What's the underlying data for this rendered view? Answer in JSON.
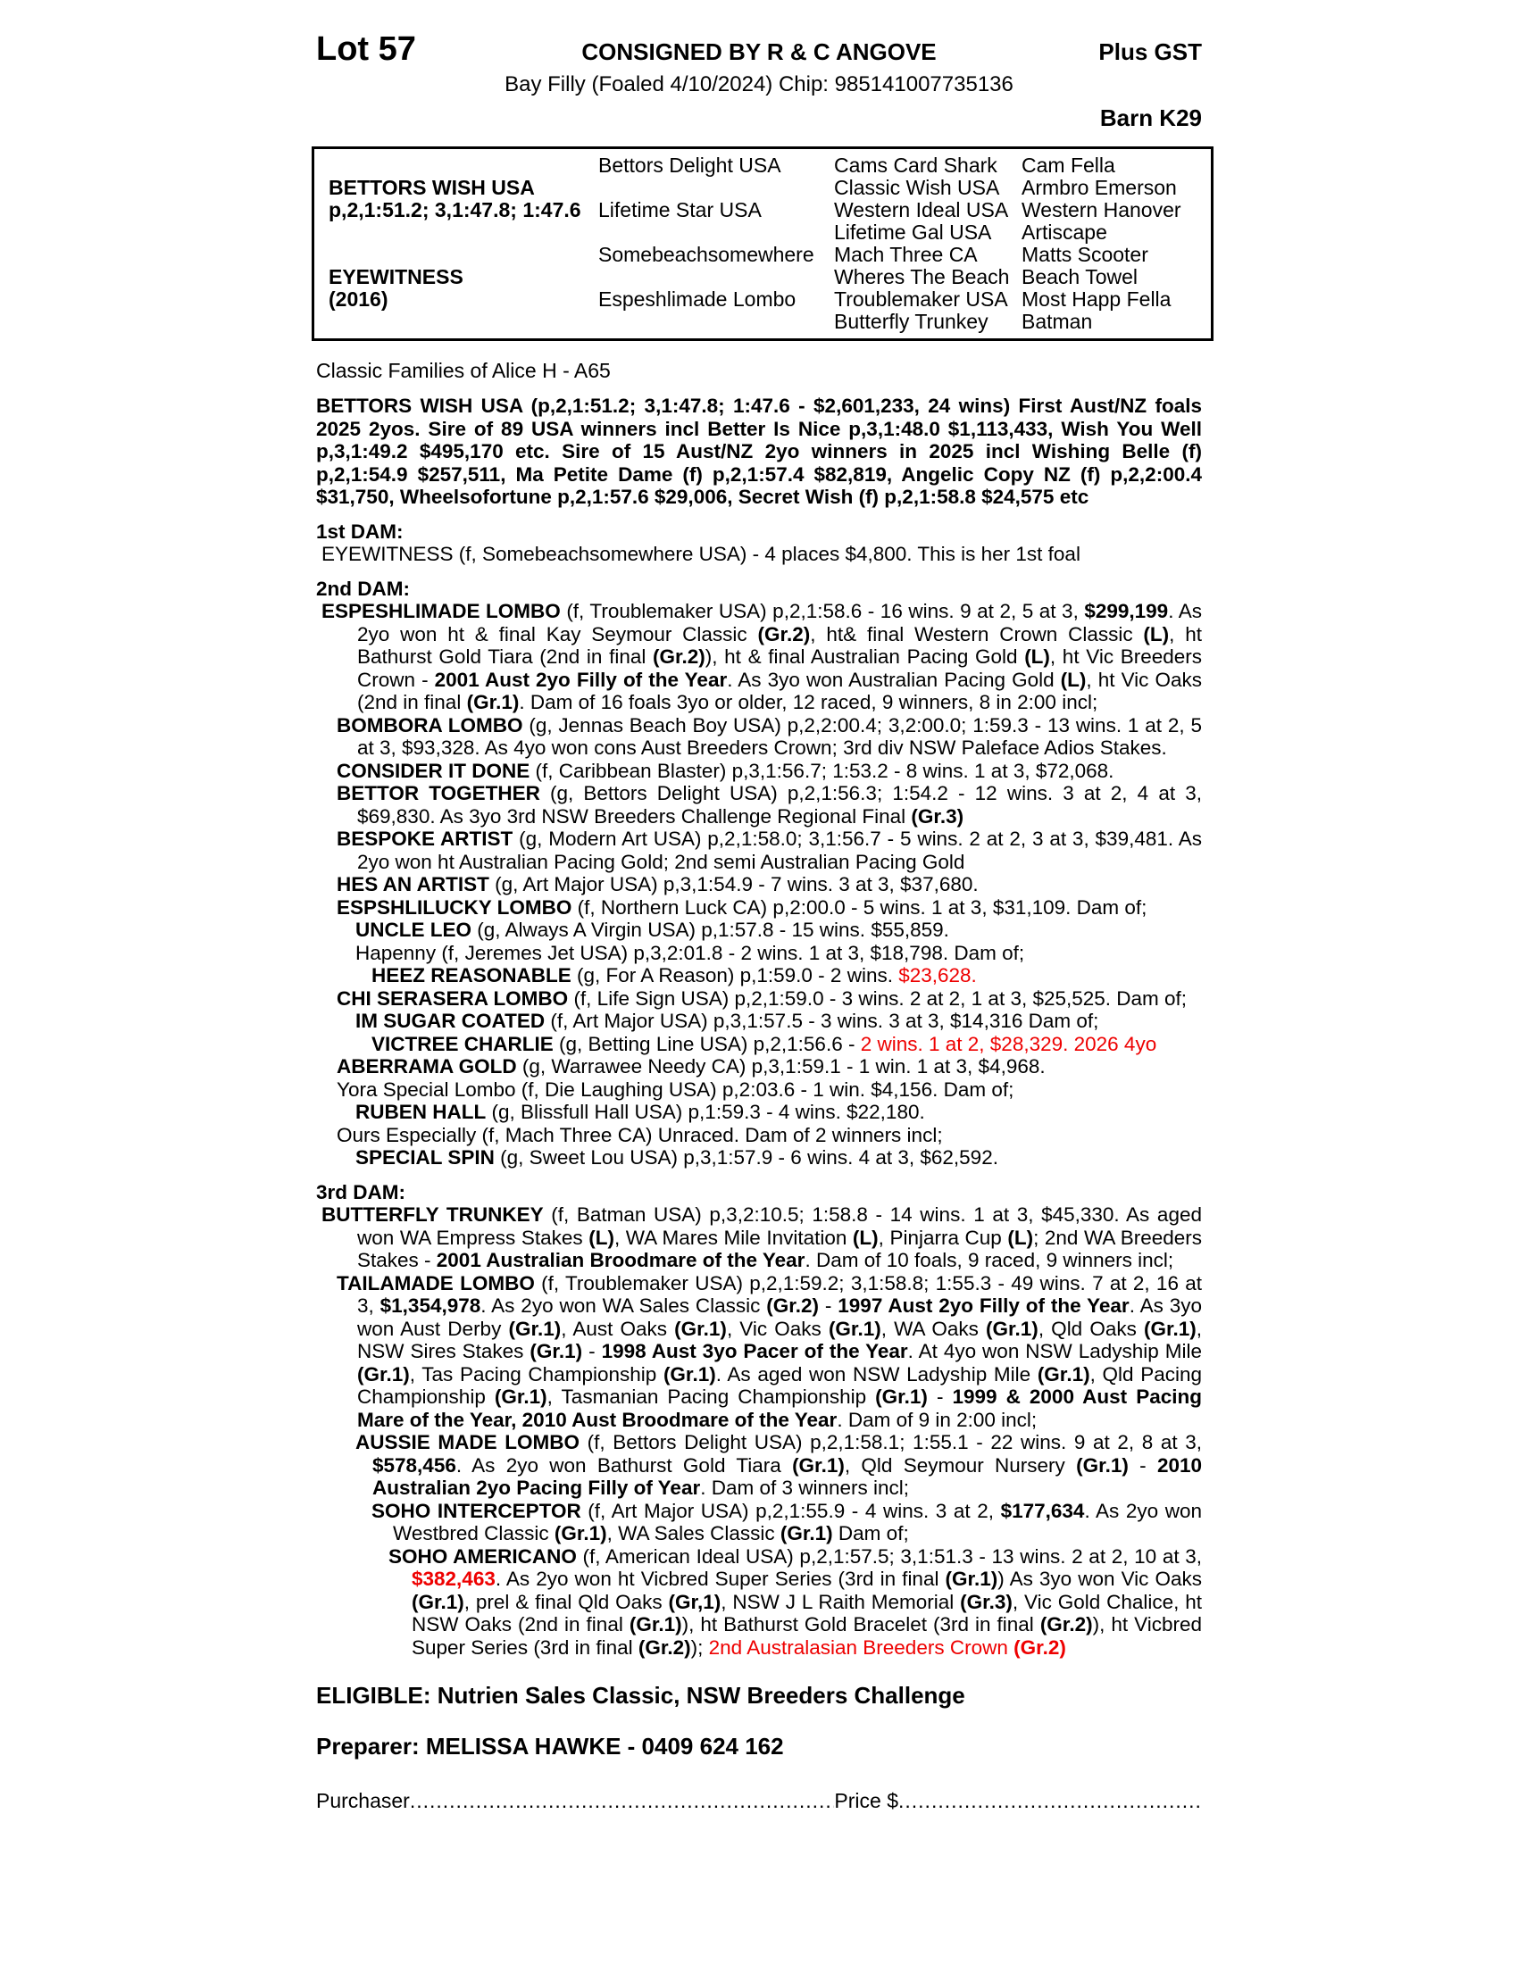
{
  "colors": {
    "accent_red": "#ee0000"
  },
  "header": {
    "lot": "Lot 57",
    "consigned": "CONSIGNED BY R & C ANGOVE",
    "plus_gst": "Plus GST",
    "foal_line": "Bay Filly (Foaled 4/10/2024) Chip: 985141007735136",
    "barn": "Barn K29"
  },
  "pedigree_table": {
    "rows": [
      [
        "",
        "Bettors Delight USA",
        "Cams Card Shark",
        "Cam Fella"
      ],
      [
        "BETTORS WISH USA",
        "",
        "Classic Wish USA",
        "Armbro Emerson"
      ],
      [
        "p,2,1:51.2; 3,1:47.8; 1:47.6",
        "Lifetime Star USA",
        "Western Ideal USA",
        "Western Hanover"
      ],
      [
        "",
        "",
        "Lifetime Gal USA",
        "Artiscape"
      ],
      [
        "",
        "Somebeachsomewhere",
        "Mach Three CA",
        "Matts Scooter"
      ],
      [
        "EYEWITNESS",
        "",
        "Wheres The Beach",
        "Beach Towel"
      ],
      [
        "(2016)",
        "Espeshlimade Lombo",
        "Troublemaker USA",
        "Most Happ Fella"
      ],
      [
        "",
        "",
        "Butterfly Trunkey",
        "Batman"
      ]
    ]
  },
  "family_line": "Classic Families of Alice H - A65",
  "paragraphs": [
    {
      "name": "sire-summary",
      "d": "sire",
      "gap": true,
      "seg": [
        {
          "t": "BETTORS WISH USA (p,2,1:51.2; 3,1:47.8; 1:47.6 - $2,601,233, 24 wins) First Aust/NZ foals 2025 2yos. Sire of 89 USA winners incl Better Is Nice p,3,1:48.0 $1,113,433, Wish You Well p,3,1:49.2 $495,170 etc. Sire of 15 Aust/NZ 2yo winners in 2025 incl Wishing Belle (f) p,2,1:54.9 $257,511, Ma Petite Dame (f) p,2,1:57.4 $82,819, Angelic Copy NZ (f) p,2,2:00.4 $31,750, Wheelsofortune p,2,1:57.6 $29,006, Secret Wish (f) p,2,1:58.8 $24,575 etc",
          "s": "b"
        }
      ]
    },
    {
      "name": "dam1-header",
      "d": "dam",
      "gap": true,
      "seg": [
        {
          "t": "1st DAM:",
          "s": "b"
        }
      ]
    },
    {
      "name": "entry-eyewitness",
      "d": 0,
      "seg": [
        {
          "t": "EYEWITNESS (f, Somebeachsomewhere USA) - 4 places $4,800. This is her 1st foal"
        }
      ]
    },
    {
      "name": "dam2-header",
      "d": "dam",
      "gap": true,
      "seg": [
        {
          "t": "2nd DAM:",
          "s": "b"
        }
      ]
    },
    {
      "name": "entry-espeshlimade-lombo",
      "d": 0,
      "seg": [
        {
          "t": "ESPESHLIMADE LOMBO",
          "s": "b"
        },
        {
          "t": " (f, Troublemaker USA) p,2,1:58.6 - 16 wins. 9 at 2, 5 at 3, "
        },
        {
          "t": "$299,199",
          "s": "b"
        },
        {
          "t": ". As 2yo won ht & final Kay Seymour Classic "
        },
        {
          "t": "(Gr.2)",
          "s": "b"
        },
        {
          "t": ", ht& final Western Crown Classic "
        },
        {
          "t": "(L)",
          "s": "b"
        },
        {
          "t": ", ht Bathurst Gold Tiara (2nd in final "
        },
        {
          "t": "(Gr.2)",
          "s": "b"
        },
        {
          "t": "), ht & final Australian Pacing Gold "
        },
        {
          "t": "(L)",
          "s": "b"
        },
        {
          "t": ", ht Vic Breeders Crown - "
        },
        {
          "t": "2001 Aust 2yo Filly of the Year",
          "s": "b"
        },
        {
          "t": ". As 3yo won Australian Pacing Gold "
        },
        {
          "t": "(L)",
          "s": "b"
        },
        {
          "t": ", ht Vic Oaks (2nd in final "
        },
        {
          "t": "(Gr.1)",
          "s": "b"
        },
        {
          "t": ". Dam of 16 foals 3yo or older, 12 raced, 9 winners, 8 in 2:00 incl;"
        }
      ]
    },
    {
      "name": "entry-bombora-lombo",
      "d": 1,
      "seg": [
        {
          "t": "BOMBORA LOMBO",
          "s": "b"
        },
        {
          "t": " (g, Jennas Beach Boy USA) p,2,2:00.4; 3,2:00.0; 1:59.3 - 13 wins. 1 at 2, 5 at 3, $93,328. As 4yo won cons Aust Breeders Crown; 3rd div NSW Paleface Adios Stakes."
        }
      ]
    },
    {
      "name": "entry-consider-it-done",
      "d": 1,
      "seg": [
        {
          "t": "CONSIDER IT DONE",
          "s": "b"
        },
        {
          "t": " (f, Caribbean Blaster) p,3,1:56.7; 1:53.2 - 8 wins. 1 at 3, $72,068."
        }
      ]
    },
    {
      "name": "entry-bettor-together",
      "d": 1,
      "seg": [
        {
          "t": "BETTOR TOGETHER",
          "s": "b"
        },
        {
          "t": " (g, Bettors Delight USA) p,2,1:56.3; 1:54.2 - 12 wins. 3 at 2, 4 at 3, $69,830. As 3yo 3rd NSW Breeders Challenge Regional Final "
        },
        {
          "t": "(Gr.3)",
          "s": "b"
        }
      ]
    },
    {
      "name": "entry-bespoke-artist",
      "d": 1,
      "seg": [
        {
          "t": "BESPOKE ARTIST",
          "s": "b"
        },
        {
          "t": " (g, Modern Art USA) p,2,1:58.0; 3,1:56.7 - 5 wins. 2 at 2, 3 at 3, $39,481. As 2yo won ht Australian Pacing Gold; 2nd semi Australian Pacing Gold"
        }
      ]
    },
    {
      "name": "entry-hes-an-artist",
      "d": 1,
      "seg": [
        {
          "t": "HES AN ARTIST",
          "s": "b"
        },
        {
          "t": " (g, Art Major USA) p,3,1:54.9 - 7 wins. 3 at 3, $37,680."
        }
      ]
    },
    {
      "name": "entry-espshlilucky-lombo",
      "d": 1,
      "seg": [
        {
          "t": "ESPSHLILUCKY LOMBO",
          "s": "b"
        },
        {
          "t": " (f, Northern Luck CA) p,2:00.0 - 5 wins. 1 at 3, $31,109. Dam of;"
        }
      ]
    },
    {
      "name": "entry-uncle-leo",
      "d": 2,
      "seg": [
        {
          "t": "UNCLE LEO",
          "s": "b"
        },
        {
          "t": " (g, Always A Virgin USA) p,1:57.8 - 15 wins. $55,859."
        }
      ]
    },
    {
      "name": "entry-hapenny",
      "d": 2,
      "seg": [
        {
          "t": "Hapenny (f, Jeremes Jet USA) p,3,2:01.8 - 2 wins. 1 at 3, $18,798. Dam of;"
        }
      ]
    },
    {
      "name": "entry-heez-reasonable",
      "d": 3,
      "seg": [
        {
          "t": "HEEZ REASONABLE",
          "s": "b"
        },
        {
          "t": " (g, For A Reason) p,1:59.0 - 2 wins. "
        },
        {
          "t": "$23,628.",
          "s": "r"
        }
      ]
    },
    {
      "name": "entry-chi-serasera-lombo",
      "d": 1,
      "seg": [
        {
          "t": "CHI SERASERA LOMBO",
          "s": "b"
        },
        {
          "t": " (f, Life Sign USA) p,2,1:59.0 - 3 wins. 2 at 2, 1 at 3, $25,525. Dam of;"
        }
      ]
    },
    {
      "name": "entry-im-sugar-coated",
      "d": 2,
      "seg": [
        {
          "t": "IM SUGAR COATED",
          "s": "b"
        },
        {
          "t": " (f, Art Major USA) p,3,1:57.5 - 3 wins. 3 at 3, $14,316 Dam of;"
        }
      ]
    },
    {
      "name": "entry-victree-charlie",
      "d": 3,
      "seg": [
        {
          "t": "VICTREE CHARLIE",
          "s": "b"
        },
        {
          "t": " (g, Betting Line USA) p,2,1:56.6 - "
        },
        {
          "t": "2 wins. 1 at 2, $28,329. 2026 4yo",
          "s": "r"
        }
      ]
    },
    {
      "name": "entry-aberrama-gold",
      "d": 1,
      "seg": [
        {
          "t": "ABERRAMA GOLD",
          "s": "b"
        },
        {
          "t": " (g, Warrawee Needy CA) p,3,1:59.1 - 1 win. 1 at 3, $4,968."
        }
      ]
    },
    {
      "name": "entry-yora-special-lombo",
      "d": 1,
      "seg": [
        {
          "t": "Yora Special Lombo (f, Die Laughing USA) p,2:03.6 - 1 win. $4,156. Dam of;"
        }
      ]
    },
    {
      "name": "entry-ruben-hall",
      "d": 2,
      "seg": [
        {
          "t": "RUBEN HALL",
          "s": "b"
        },
        {
          "t": " (g, Blissfull Hall USA) p,1:59.3 - 4 wins. $22,180."
        }
      ]
    },
    {
      "name": "entry-ours-especially",
      "d": 1,
      "seg": [
        {
          "t": "Ours Especially (f, Mach Three CA) Unraced. Dam of 2 winners incl;"
        }
      ]
    },
    {
      "name": "entry-special-spin",
      "d": 2,
      "seg": [
        {
          "t": "SPECIAL SPIN",
          "s": "b"
        },
        {
          "t": " (g, Sweet Lou USA) p,3,1:57.9 - 6 wins. 4 at 3, $62,592."
        }
      ]
    },
    {
      "name": "dam3-header",
      "d": "dam",
      "gap": true,
      "seg": [
        {
          "t": "3rd DAM:",
          "s": "b"
        }
      ]
    },
    {
      "name": "entry-butterfly-trunkey",
      "d": 0,
      "seg": [
        {
          "t": "BUTTERFLY TRUNKEY",
          "s": "b"
        },
        {
          "t": " (f, Batman USA) p,3,2:10.5; 1:58.8 - 14 wins. 1 at 3, $45,330. As aged won WA Empress Stakes "
        },
        {
          "t": "(L)",
          "s": "b"
        },
        {
          "t": ", WA Mares Mile Invitation "
        },
        {
          "t": "(L)",
          "s": "b"
        },
        {
          "t": ", Pinjarra Cup "
        },
        {
          "t": "(L)",
          "s": "b"
        },
        {
          "t": "; 2nd WA Breeders Stakes - "
        },
        {
          "t": "2001 Australian Broodmare of the Year",
          "s": "b"
        },
        {
          "t": ". Dam of 10 foals, 9 raced, 9 winners incl;"
        }
      ]
    },
    {
      "name": "entry-tailamade-lombo",
      "d": 1,
      "seg": [
        {
          "t": "TAILAMADE LOMBO",
          "s": "b"
        },
        {
          "t": " (f, Troublemaker USA) p,2,1:59.2; 3,1:58.8; 1:55.3 - 49 wins. 7 at 2, 16 at 3, "
        },
        {
          "t": "$1,354,978",
          "s": "b"
        },
        {
          "t": ". As 2yo won WA Sales Classic "
        },
        {
          "t": "(Gr.2)",
          "s": "b"
        },
        {
          "t": " - "
        },
        {
          "t": "1997 Aust 2yo Filly of the Year",
          "s": "b"
        },
        {
          "t": ". As 3yo won Aust Derby "
        },
        {
          "t": "(Gr.1)",
          "s": "b"
        },
        {
          "t": ", Aust Oaks "
        },
        {
          "t": "(Gr.1)",
          "s": "b"
        },
        {
          "t": ", Vic Oaks "
        },
        {
          "t": "(Gr.1)",
          "s": "b"
        },
        {
          "t": ", WA Oaks "
        },
        {
          "t": "(Gr.1)",
          "s": "b"
        },
        {
          "t": ", Qld Oaks "
        },
        {
          "t": "(Gr.1)",
          "s": "b"
        },
        {
          "t": ", NSW Sires Stakes "
        },
        {
          "t": "(Gr.1)",
          "s": "b"
        },
        {
          "t": " - "
        },
        {
          "t": "1998 Aust 3yo Pacer of the Year",
          "s": "b"
        },
        {
          "t": ". At 4yo won NSW Ladyship Mile "
        },
        {
          "t": "(Gr.1)",
          "s": "b"
        },
        {
          "t": ", Tas Pacing Championship "
        },
        {
          "t": "(Gr.1)",
          "s": "b"
        },
        {
          "t": ". As aged won NSW Ladyship Mile "
        },
        {
          "t": "(Gr.1)",
          "s": "b"
        },
        {
          "t": ", Qld Pacing Championship "
        },
        {
          "t": "(Gr.1)",
          "s": "b"
        },
        {
          "t": ", Tasmanian Pacing Championship "
        },
        {
          "t": "(Gr.1)",
          "s": "b"
        },
        {
          "t": " - "
        },
        {
          "t": "1999 & 2000 Aust Pacing Mare of the Year, 2010 Aust Broodmare of the Year",
          "s": "b"
        },
        {
          "t": ". Dam of 9 in 2:00 incl;"
        }
      ]
    },
    {
      "name": "entry-aussie-made-lombo",
      "d": 2,
      "seg": [
        {
          "t": "AUSSIE MADE LOMBO",
          "s": "b"
        },
        {
          "t": " (f, Bettors Delight USA) p,2,1:58.1; 1:55.1 - 22 wins. 9 at 2, 8 at 3, "
        },
        {
          "t": "$578,456",
          "s": "b"
        },
        {
          "t": ". As 2yo won Bathurst Gold Tiara "
        },
        {
          "t": "(Gr.1)",
          "s": "b"
        },
        {
          "t": ", Qld Seymour Nursery "
        },
        {
          "t": "(Gr.1)",
          "s": "b"
        },
        {
          "t": " - "
        },
        {
          "t": "2010 Australian 2yo Pacing Filly of Year",
          "s": "b"
        },
        {
          "t": ". Dam of 3 winners incl;"
        }
      ]
    },
    {
      "name": "entry-soho-interceptor",
      "d": 3,
      "seg": [
        {
          "t": "SOHO INTERCEPTOR",
          "s": "b"
        },
        {
          "t": " (f, Art Major USA) p,2,1:55.9 - 4 wins. 3 at 2, "
        },
        {
          "t": "$177,634",
          "s": "b"
        },
        {
          "t": ". As 2yo won Westbred Classic "
        },
        {
          "t": "(Gr.1)",
          "s": "b"
        },
        {
          "t": ", WA Sales Classic "
        },
        {
          "t": "(Gr.1)",
          "s": "b"
        },
        {
          "t": " Dam of;"
        }
      ]
    },
    {
      "name": "entry-soho-americano",
      "d": 4,
      "seg": [
        {
          "t": "SOHO AMERICANO",
          "s": "b"
        },
        {
          "t": " (f, American Ideal USA) p,2,1:57.5; 3,1:51.3 - 13 wins. 2 at 2, 10 at 3, "
        },
        {
          "t": "$382,463",
          "s": "br"
        },
        {
          "t": ". As 2yo won ht Vicbred Super Series (3rd in final "
        },
        {
          "t": "(Gr.1)",
          "s": "b"
        },
        {
          "t": ") As 3yo won Vic Oaks "
        },
        {
          "t": "(Gr.1)",
          "s": "b"
        },
        {
          "t": ", prel & final Qld Oaks "
        },
        {
          "t": "(Gr,1)",
          "s": "b"
        },
        {
          "t": ", NSW J L Raith Memorial "
        },
        {
          "t": "(Gr.3)",
          "s": "b"
        },
        {
          "t": ", Vic Gold Chalice, ht NSW Oaks (2nd in final "
        },
        {
          "t": "(Gr.1)",
          "s": "b"
        },
        {
          "t": "), ht Bathurst Gold Bracelet (3rd in final "
        },
        {
          "t": "(Gr.2)",
          "s": "b"
        },
        {
          "t": "), ht Vicbred Super Series (3rd in final "
        },
        {
          "t": "(Gr.2)",
          "s": "b"
        },
        {
          "t": "); "
        },
        {
          "t": "2nd Australasian Breeders Crown ",
          "s": "r"
        },
        {
          "t": "(Gr.2)",
          "s": "br"
        }
      ]
    }
  ],
  "footer": {
    "eligible": "ELIGIBLE: Nutrien Sales Classic, NSW Breeders Challenge",
    "preparer": "Preparer: MELISSA HAWKE - 0409 624 162",
    "purchaser_label": "Purchaser",
    "purchaser_dots": "........................................................................................................................",
    "price_label": "Price $",
    "price_dots": "................................................................"
  }
}
